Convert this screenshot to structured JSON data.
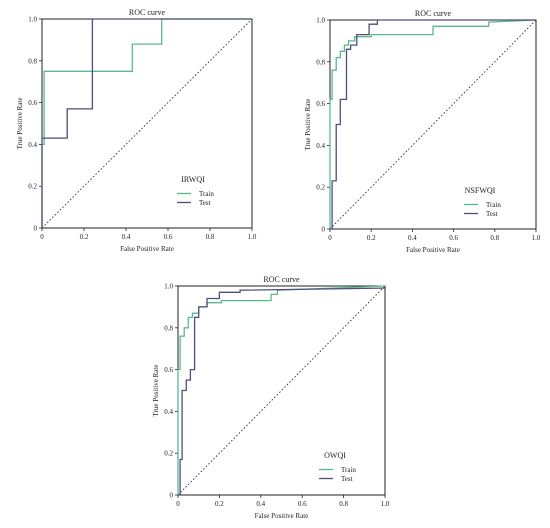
{
  "chart_data": [
    {
      "type": "line",
      "title": "ROC curve",
      "xlabel": "False Positive Rate",
      "ylabel": "True Positive Rate",
      "xlim": [
        0,
        1
      ],
      "ylim": [
        0,
        1
      ],
      "xticks": [
        "0",
        "0.2",
        "0.4",
        "0.6",
        "0.8",
        "1.0"
      ],
      "yticks": [
        "0",
        "0.2",
        "0.4",
        "0.6",
        "0.8",
        "1.0"
      ],
      "legend_title": "IRWQI",
      "legend_position": "lower-right",
      "reference_line": "diagonal dotted",
      "series": [
        {
          "name": "Train",
          "color": "#5bb88f",
          "x": [
            0,
            0,
            0.01,
            0.01,
            0.43,
            0.43,
            0.57,
            0.57,
            1.0
          ],
          "y": [
            0,
            0.4,
            0.4,
            0.75,
            0.75,
            0.88,
            0.88,
            1.0,
            1.0
          ]
        },
        {
          "name": "Test",
          "color": "#4f4f7a",
          "x": [
            0,
            0,
            0.12,
            0.12,
            0.24,
            0.24,
            1.0
          ],
          "y": [
            0,
            0.43,
            0.43,
            0.57,
            0.57,
            1.0,
            1.0
          ]
        }
      ]
    },
    {
      "type": "line",
      "title": "ROC curve",
      "xlabel": "False Positive Rate",
      "ylabel": "True Positive Rate",
      "xlim": [
        0,
        1
      ],
      "ylim": [
        0,
        1
      ],
      "xticks": [
        "0",
        "0.2",
        "0.4",
        "0.6",
        "0.8",
        "1.0"
      ],
      "yticks": [
        "0",
        "0.2",
        "0.4",
        "0.6",
        "0.8",
        "1.0"
      ],
      "legend_title": "NSFWQI",
      "legend_position": "lower-right",
      "reference_line": "diagonal dotted",
      "series": [
        {
          "name": "Train",
          "color": "#5bb88f",
          "x": [
            0,
            0,
            0.01,
            0.01,
            0.03,
            0.03,
            0.05,
            0.05,
            0.07,
            0.07,
            0.09,
            0.09,
            0.12,
            0.12,
            0.2,
            0.2,
            0.5,
            0.5,
            0.77,
            0.77,
            1.0
          ],
          "y": [
            0,
            0.62,
            0.62,
            0.76,
            0.76,
            0.82,
            0.82,
            0.85,
            0.85,
            0.88,
            0.88,
            0.9,
            0.9,
            0.92,
            0.92,
            0.93,
            0.93,
            0.97,
            0.97,
            0.99,
            1.0
          ]
        },
        {
          "name": "Test",
          "color": "#4f4f7a",
          "x": [
            0,
            0.01,
            0.01,
            0.03,
            0.03,
            0.05,
            0.05,
            0.08,
            0.08,
            0.1,
            0.1,
            0.13,
            0.13,
            0.19,
            0.19,
            0.23,
            0.23,
            1.0
          ],
          "y": [
            0,
            0,
            0.23,
            0.23,
            0.5,
            0.5,
            0.62,
            0.62,
            0.86,
            0.86,
            0.88,
            0.88,
            0.93,
            0.93,
            0.98,
            0.98,
            1.0,
            1.0
          ]
        }
      ]
    },
    {
      "type": "line",
      "title": "ROC curve",
      "xlabel": "False Positive Rate",
      "ylabel": "True Positive Rate",
      "xlim": [
        0,
        1
      ],
      "ylim": [
        0,
        1
      ],
      "xticks": [
        "0",
        "0.2",
        "0.4",
        "0.6",
        "0.8",
        "1.0"
      ],
      "yticks": [
        "0",
        "0.2",
        "0.4",
        "0.6",
        "0.8",
        "1.0"
      ],
      "legend_title": "OWQI",
      "legend_position": "lower-right",
      "reference_line": "diagonal dotted",
      "series": [
        {
          "name": "Train",
          "color": "#5bb88f",
          "x": [
            0,
            0,
            0.01,
            0.01,
            0.03,
            0.03,
            0.05,
            0.05,
            0.07,
            0.07,
            0.1,
            0.1,
            0.14,
            0.14,
            0.21,
            0.21,
            0.45,
            0.45,
            0.48,
            0.48,
            1.0
          ],
          "y": [
            0,
            0.6,
            0.6,
            0.76,
            0.76,
            0.8,
            0.8,
            0.85,
            0.85,
            0.87,
            0.87,
            0.9,
            0.9,
            0.92,
            0.92,
            0.93,
            0.93,
            0.96,
            0.96,
            0.98,
            1.0
          ]
        },
        {
          "name": "Test",
          "color": "#4f4f7a",
          "x": [
            0,
            0.01,
            0.01,
            0.02,
            0.02,
            0.04,
            0.04,
            0.06,
            0.06,
            0.08,
            0.08,
            0.1,
            0.1,
            0.14,
            0.14,
            0.2,
            0.2,
            0.3,
            0.3,
            1.0
          ],
          "y": [
            0,
            0,
            0.17,
            0.17,
            0.5,
            0.5,
            0.55,
            0.55,
            0.6,
            0.6,
            0.85,
            0.85,
            0.9,
            0.9,
            0.94,
            0.94,
            0.97,
            0.97,
            0.98,
            0.99
          ]
        }
      ]
    }
  ]
}
